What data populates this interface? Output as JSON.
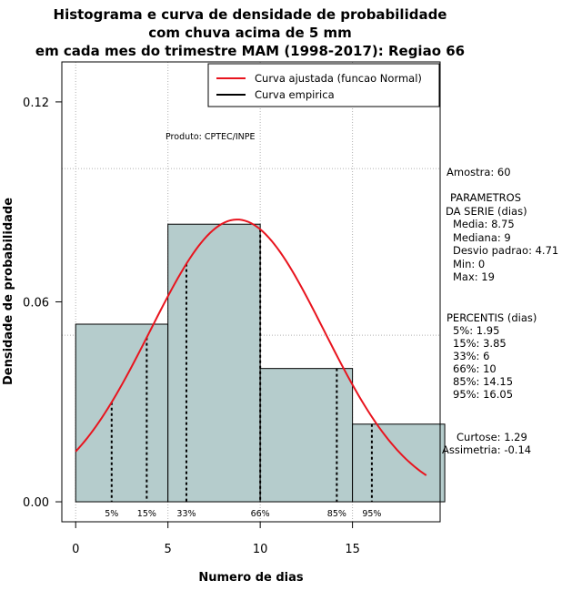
{
  "chart_data": {
    "type": "bar",
    "title_lines": [
      "Histograma e curva de densidade de probabilidade",
      "com chuva acima de 5 mm",
      "em cada mes do trimestre MAM (1998-2017): Regiao 66"
    ],
    "xlabel": "Numero de dias",
    "ylabel": "Densidade de probabilidade",
    "xlim": [
      -0.75,
      19.75
    ],
    "ylim": [
      -0.006,
      0.132
    ],
    "x_ticks": [
      0,
      5,
      10,
      15
    ],
    "y_ticks": [
      0.0,
      0.06,
      0.12
    ],
    "y_tick_labels": [
      "0.00",
      "0.06",
      "0.12"
    ],
    "grid_x": [
      0,
      5,
      10,
      15
    ],
    "grid_y": [
      0.05,
      0.1
    ],
    "bins": [
      {
        "from": 0,
        "to": 5,
        "density": 0.0533
      },
      {
        "from": 5,
        "to": 10,
        "density": 0.0833
      },
      {
        "from": 10,
        "to": 15,
        "density": 0.04
      },
      {
        "from": 15,
        "to": 20,
        "density": 0.0233
      }
    ],
    "normal_curve": {
      "mean": 8.75,
      "sd": 4.71,
      "x_from": 0,
      "x_to": 19
    },
    "percentile_lines": [
      {
        "label": "5%",
        "x": 1.95
      },
      {
        "label": "15%",
        "x": 3.85
      },
      {
        "label": "33%",
        "x": 6
      },
      {
        "label": "66%",
        "x": 10
      },
      {
        "label": "85%",
        "x": 14.15
      },
      {
        "label": "95%",
        "x": 16.05
      }
    ],
    "legend": {
      "position": "top-right",
      "entries": [
        {
          "label": "Curva ajustada (funcao Normal)",
          "color": "#e8141e"
        },
        {
          "label": "Curva empirica",
          "color": "#000000"
        }
      ]
    },
    "annotation": "Produto: CPTEC/INPE",
    "colors": {
      "bar_fill": "#b5cccc",
      "curve": "#e8141e",
      "grid": "#b0b0b0"
    }
  },
  "stats": {
    "amostra": "Amostra: 60",
    "param_lines": [
      "PARAMETROS",
      "DA SERIE (dias)",
      "Media: 8.75",
      "Mediana: 9",
      "Desvio padrao: 4.71",
      "Min: 0",
      "Max: 19"
    ],
    "percentis_lines": [
      "PERCENTIS (dias)",
      "5%: 1.95",
      "15%: 3.85",
      "33%: 6",
      "66%: 10",
      "85%: 14.15",
      "95%: 16.05"
    ],
    "curtose": "Curtose: 1.29",
    "assimetria": "Assimetria: -0.14"
  }
}
